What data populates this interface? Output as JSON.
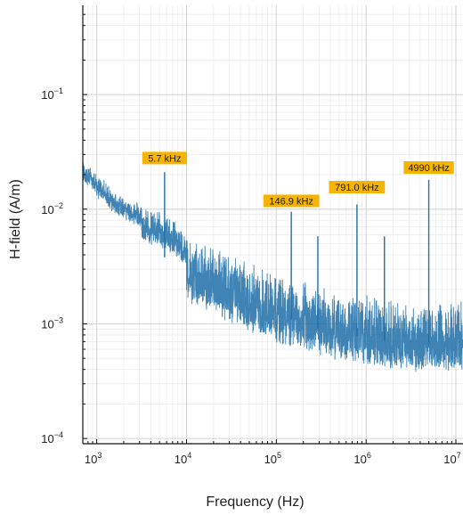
{
  "chart_data": {
    "type": "line",
    "title": "",
    "xlabel": "Frequency (Hz)",
    "ylabel": "H-field (A/m)",
    "x_scale": "log",
    "y_scale": "log",
    "xlim": [
      700,
      12000000
    ],
    "ylim": [
      9e-05,
      0.6
    ],
    "grid": true,
    "legend": "none",
    "x_ticks": [
      {
        "base": "10",
        "exp": "3",
        "value": 1000
      },
      {
        "base": "10",
        "exp": "4",
        "value": 10000
      },
      {
        "base": "10",
        "exp": "5",
        "value": 100000
      },
      {
        "base": "10",
        "exp": "6",
        "value": 1000000
      },
      {
        "base": "10",
        "exp": "7",
        "value": 10000000
      }
    ],
    "y_ticks": [
      {
        "base": "10",
        "exp": "−4",
        "value": 0.0001
      },
      {
        "base": "10",
        "exp": "−3",
        "value": 0.001
      },
      {
        "base": "10",
        "exp": "−2",
        "value": 0.01
      },
      {
        "base": "10",
        "exp": "−1",
        "value": 0.1
      }
    ],
    "series": [
      {
        "color": "#1f6fa8",
        "envelope": [
          {
            "x": 700,
            "y": 0.022
          },
          {
            "x": 1500,
            "y": 0.012
          },
          {
            "x": 3000,
            "y": 0.009
          },
          {
            "x": 6000,
            "y": 0.0075
          },
          {
            "x": 10000,
            "y": 0.0055
          },
          {
            "x": 30000,
            "y": 0.0035
          },
          {
            "x": 100000,
            "y": 0.0024
          },
          {
            "x": 300000,
            "y": 0.0018
          },
          {
            "x": 1000000,
            "y": 0.0015
          },
          {
            "x": 3000000,
            "y": 0.0013
          },
          {
            "x": 12000000,
            "y": 0.0013
          }
        ]
      }
    ],
    "peaks": [
      {
        "x": 5700,
        "y": 0.021
      },
      {
        "x": 146900,
        "y": 0.0095
      },
      {
        "x": 290000,
        "y": 0.0058
      },
      {
        "x": 791000,
        "y": 0.011
      },
      {
        "x": 1600000,
        "y": 0.0058
      },
      {
        "x": 4990000,
        "y": 0.018
      }
    ],
    "annotations": [
      {
        "text": "5.7 kHz",
        "x": 5700,
        "y": 0.026,
        "color": "#f5b400"
      },
      {
        "text": "146.9 kHz",
        "x": 146900,
        "y": 0.011,
        "color": "#f5b400"
      },
      {
        "text": "791.0 kHz",
        "x": 791000,
        "y": 0.0145,
        "color": "#f5b400"
      },
      {
        "text": "4990 kHz",
        "x": 4990000,
        "y": 0.0215,
        "color": "#f5b400"
      }
    ]
  }
}
